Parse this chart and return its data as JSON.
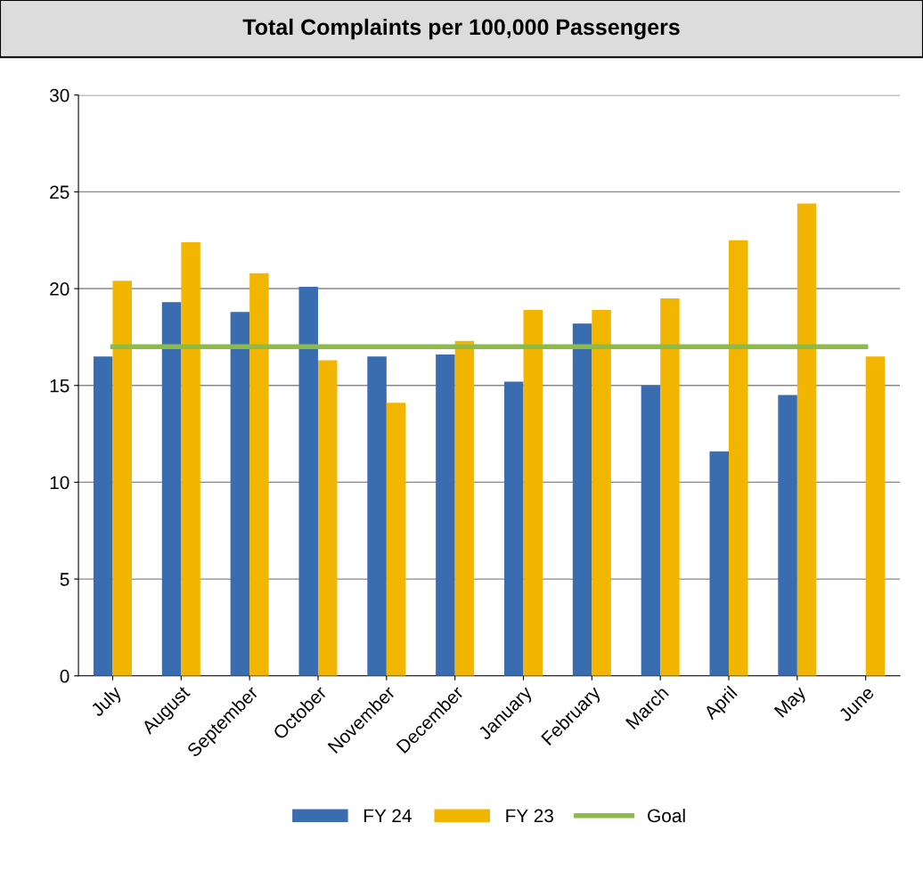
{
  "chart_data": {
    "type": "bar",
    "title": "Total Complaints per 100,000 Passengers",
    "categories": [
      "July",
      "August",
      "September",
      "October",
      "November",
      "December",
      "January",
      "February",
      "March",
      "April",
      "May",
      "June"
    ],
    "series": [
      {
        "name": "FY 24",
        "color": "#3a6db0",
        "values": [
          16.5,
          19.3,
          18.8,
          20.1,
          16.5,
          16.6,
          15.2,
          18.2,
          15.0,
          11.6,
          14.5,
          null
        ]
      },
      {
        "name": "FY 23",
        "color": "#f2b600",
        "values": [
          20.4,
          22.4,
          20.8,
          16.3,
          14.1,
          17.3,
          18.9,
          18.9,
          19.5,
          22.5,
          24.4,
          16.5
        ]
      },
      {
        "name": "Goal",
        "type": "line",
        "color": "#8dbb4a",
        "values": [
          17,
          17,
          17,
          17,
          17,
          17,
          17,
          17,
          17,
          17,
          17,
          17
        ]
      }
    ],
    "ylim": [
      0,
      30
    ],
    "yticks": [
      0,
      5,
      10,
      15,
      20,
      25,
      30
    ],
    "grid": "y",
    "legend": "bottom"
  }
}
